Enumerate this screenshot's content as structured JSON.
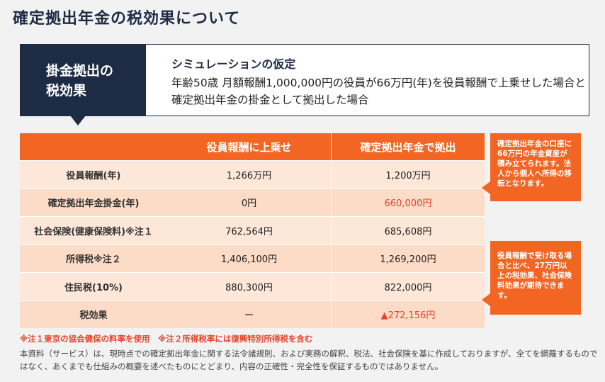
{
  "title": "確定拠出年金の税効果について",
  "simulation": {
    "tag_line1": "掛金拠出の",
    "tag_line2": "税効果",
    "heading": "シミュレーションの仮定",
    "body": "年齢50歳 月額報酬1,000,000円の役員が66万円(年)を役員報酬で上乗せした場合と確定拠出年金の掛金として拠出した場合"
  },
  "table": {
    "headers": [
      "",
      "役員報酬に上乗せ",
      "確定拠出年金で拠出"
    ],
    "rows": [
      {
        "label": "役員報酬(年)",
        "a": "1,266万円",
        "b": "1,200万円"
      },
      {
        "label": "確定拠出年金掛金(年)",
        "a": "0円",
        "b": "660,000円"
      },
      {
        "label": "社会保険(健康保険料)※注１",
        "a": "762,564円",
        "b": "685,608円"
      },
      {
        "label": "所得税※注２",
        "a": "1,406,100円",
        "b": "1,269,200円"
      },
      {
        "label": "住民税(10%)",
        "a": "880,300円",
        "b": "822,000円"
      },
      {
        "label": "税効果",
        "a": "ー",
        "b": "▲272,156円"
      }
    ]
  },
  "notes": {
    "note1": "確定拠出年金の口座に66万円の年金資産が積み立てられます。法人から個人へ所得の移転となります。",
    "note2": "役員報酬で受け取る場合と比べ、27万円以上の税効果、社会保険料効果が期待できます。"
  },
  "footnote": "※注１東京の協会健保の料率を使用　※注２所得税率には復興特別所得税を含む",
  "disclaimer": "本資料（サービス）は、現時点での確定拠出年金に関する法令諸規則、および実務の解釈、税法、社会保険を基に作成しておりますが、全てを網羅するものではなく、あくまでも仕組みの概要を述べたものにとどまり、内容の正確性・完全性を保証するものではありません。",
  "colors": {
    "navy": "#1e2b45",
    "orange": "#f26522",
    "red": "#e8422b"
  }
}
